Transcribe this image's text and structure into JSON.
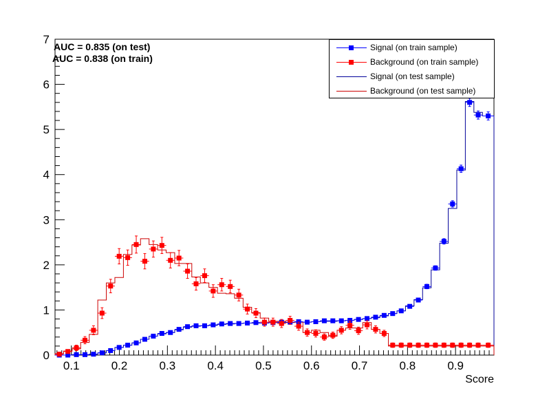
{
  "annotations": {
    "auc_test": "AUC = 0.835  (on test)",
    "auc_train": "AUC = 0.838 (on train)"
  },
  "legend": [
    {
      "label": "Signal (on train sample)",
      "color": "#0000ff",
      "style": "marker"
    },
    {
      "label": "Background (on train sample)",
      "color": "#ff0000",
      "style": "marker"
    },
    {
      "label": "Signal (on test sample)",
      "color": "#000099",
      "style": "line"
    },
    {
      "label": "Background (on test sample)",
      "color": "#cc0000",
      "style": "line"
    }
  ],
  "chart_data": {
    "type": "line",
    "xlabel": "Score",
    "ylabel": "",
    "xlim": [
      0.066,
      0.98
    ],
    "ylim": [
      0,
      7.0
    ],
    "x_ticks": [
      0.1,
      0.2,
      0.3,
      0.4,
      0.5,
      0.6,
      0.7,
      0.8,
      0.9
    ],
    "y_ticks": [
      0,
      1,
      2,
      3,
      4,
      5,
      6,
      7
    ],
    "bin_edges": [
      0.066,
      0.0838,
      0.1016,
      0.1194,
      0.1372,
      0.155,
      0.1728,
      0.1906,
      0.2084,
      0.2262,
      0.244,
      0.2618,
      0.2796,
      0.2974,
      0.3152,
      0.333,
      0.3508,
      0.3686,
      0.3864,
      0.4042,
      0.422,
      0.4398,
      0.4576,
      0.4754,
      0.4932,
      0.511,
      0.5288,
      0.5466,
      0.5644,
      0.5822,
      0.6,
      0.6178,
      0.6356,
      0.6534,
      0.6712,
      0.689,
      0.7068,
      0.7246,
      0.7424,
      0.7602,
      0.778,
      0.7958,
      0.8136,
      0.8314,
      0.8492,
      0.867,
      0.8848,
      0.9026,
      0.9204,
      0.9382,
      0.956,
      0.98
    ],
    "series": [
      {
        "name": "Signal (on train sample)",
        "kind": "marker",
        "color": "#0000ff",
        "values": [
          0,
          0,
          0.01,
          0.01,
          0.02,
          0.05,
          0.1,
          0.17,
          0.22,
          0.27,
          0.35,
          0.42,
          0.48,
          0.5,
          0.57,
          0.63,
          0.65,
          0.65,
          0.67,
          0.69,
          0.7,
          0.7,
          0.71,
          0.72,
          0.71,
          0.72,
          0.73,
          0.73,
          0.74,
          0.73,
          0.74,
          0.76,
          0.76,
          0.76,
          0.77,
          0.79,
          0.81,
          0.84,
          0.88,
          0.92,
          0.98,
          1.08,
          1.22,
          1.52,
          1.93,
          2.52,
          3.35,
          4.13,
          5.6,
          5.32,
          5.3
        ],
        "errors": [
          0,
          0,
          0.01,
          0.01,
          0.01,
          0.01,
          0.02,
          0.02,
          0.02,
          0.02,
          0.03,
          0.03,
          0.03,
          0.03,
          0.03,
          0.03,
          0.03,
          0.03,
          0.03,
          0.03,
          0.03,
          0.03,
          0.03,
          0.03,
          0.03,
          0.03,
          0.03,
          0.03,
          0.03,
          0.03,
          0.03,
          0.03,
          0.03,
          0.03,
          0.03,
          0.03,
          0.03,
          0.03,
          0.03,
          0.03,
          0.04,
          0.04,
          0.04,
          0.05,
          0.05,
          0.06,
          0.07,
          0.08,
          0.09,
          0.09,
          0.09
        ]
      },
      {
        "name": "Background (on train sample)",
        "kind": "marker",
        "color": "#ff0000",
        "values": [
          0.02,
          0.08,
          0.16,
          0.33,
          0.55,
          0.93,
          1.53,
          2.19,
          2.16,
          2.45,
          2.08,
          2.35,
          2.43,
          2.1,
          2.15,
          1.86,
          1.58,
          1.76,
          1.42,
          1.56,
          1.52,
          1.33,
          1.02,
          0.93,
          0.73,
          0.73,
          0.7,
          0.77,
          0.64,
          0.5,
          0.48,
          0.4,
          0.44,
          0.55,
          0.66,
          0.54,
          0.67,
          0.57,
          0.48,
          0.22,
          0.22,
          0.22,
          0.22,
          0.22,
          0.22,
          0.22,
          0.22,
          0.22,
          0.22,
          0.22,
          0.22
        ],
        "errors": [
          0.02,
          0.04,
          0.06,
          0.08,
          0.1,
          0.12,
          0.15,
          0.17,
          0.17,
          0.19,
          0.17,
          0.18,
          0.18,
          0.17,
          0.17,
          0.16,
          0.14,
          0.15,
          0.14,
          0.14,
          0.14,
          0.13,
          0.11,
          0.1,
          0.09,
          0.09,
          0.09,
          0.09,
          0.09,
          0.08,
          0.08,
          0.07,
          0.07,
          0.08,
          0.09,
          0.08,
          0.09,
          0.08,
          0.07,
          0.05,
          0.05,
          0.05,
          0.05,
          0.05,
          0.05,
          0.05,
          0.05,
          0.05,
          0.05,
          0.05,
          0.05
        ]
      },
      {
        "name": "Signal (on test sample)",
        "kind": "step",
        "color": "#000099",
        "values": [
          0,
          0,
          0.01,
          0.01,
          0.02,
          0.05,
          0.1,
          0.17,
          0.22,
          0.27,
          0.35,
          0.42,
          0.47,
          0.5,
          0.56,
          0.62,
          0.64,
          0.65,
          0.66,
          0.68,
          0.69,
          0.7,
          0.71,
          0.71,
          0.71,
          0.72,
          0.72,
          0.73,
          0.73,
          0.73,
          0.74,
          0.75,
          0.75,
          0.76,
          0.77,
          0.79,
          0.81,
          0.83,
          0.87,
          0.92,
          0.98,
          1.09,
          1.23,
          1.49,
          1.89,
          2.48,
          3.25,
          4.1,
          5.62,
          5.38,
          5.3
        ]
      },
      {
        "name": "Background (on test sample)",
        "kind": "step",
        "color": "#cc0000",
        "values": [
          0.03,
          0.09,
          0.14,
          0.28,
          0.46,
          1.22,
          1.6,
          1.72,
          2.23,
          2.44,
          2.58,
          2.45,
          2.33,
          2.27,
          2.03,
          2.03,
          1.73,
          1.6,
          1.5,
          1.37,
          1.36,
          1.26,
          1.06,
          0.94,
          0.82,
          0.75,
          0.75,
          0.72,
          0.73,
          0.5,
          0.55,
          0.5,
          0.42,
          0.55,
          0.6,
          0.6,
          0.72,
          0.57,
          0.48,
          0.2,
          0.2,
          0.2,
          0.2,
          0.2,
          0.2,
          0.2,
          0.2,
          0.2,
          0.2,
          0.2,
          0.2
        ]
      }
    ]
  }
}
